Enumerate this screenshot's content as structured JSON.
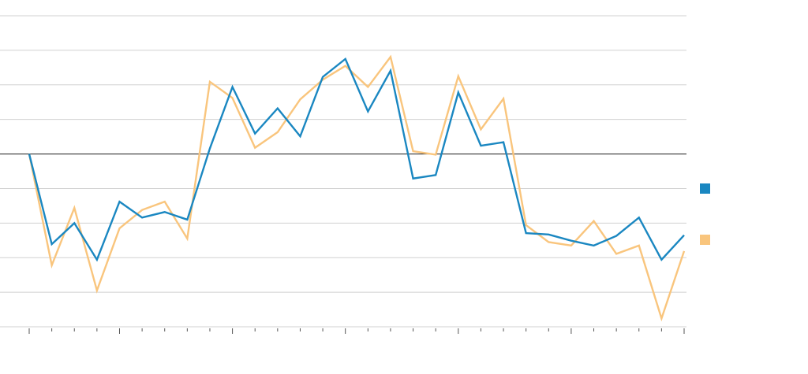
{
  "chart_data": {
    "type": "line",
    "x": [
      0,
      1,
      2,
      3,
      4,
      5,
      6,
      7,
      8,
      9,
      10,
      11,
      12,
      13,
      14,
      15,
      16,
      17,
      18,
      19,
      20,
      21,
      22,
      23,
      24,
      25,
      26,
      27,
      28,
      29
    ],
    "xlim": [
      0,
      29
    ],
    "xticks": [
      0,
      1,
      2,
      3,
      4,
      5,
      6,
      7,
      8,
      9,
      10,
      11,
      12,
      13,
      14,
      15,
      16,
      17,
      18,
      19,
      20,
      21,
      22,
      23,
      24,
      25,
      26,
      27,
      28,
      29
    ],
    "major_xticks": [
      0,
      4,
      9,
      14,
      19,
      24,
      29
    ],
    "ylim": [
      -50,
      40
    ],
    "yticks": [
      -50,
      -40,
      -30,
      -20,
      -10,
      0,
      10,
      20,
      30,
      40
    ],
    "grid": true,
    "baseline": 0,
    "series": [
      {
        "color": "#1a87c1",
        "values": [
          0,
          -26.1,
          -20.0,
          -30.6,
          -13.8,
          -18.4,
          -16.8,
          -19.0,
          1.6,
          19.4,
          5.9,
          13.2,
          5.1,
          22.3,
          27.5,
          12.3,
          24.1,
          -7.1,
          -6.1,
          17.8,
          2.4,
          3.4,
          -22.9,
          -23.3,
          -25.1,
          -26.5,
          -23.7,
          -18.4,
          -30.6,
          -23.5
        ]
      },
      {
        "color": "#f9c57d",
        "values": [
          0,
          -32.2,
          -15.6,
          -39.5,
          -21.5,
          -16.2,
          -13.8,
          -24.5,
          20.9,
          16.2,
          1.8,
          6.3,
          15.8,
          21.5,
          25.5,
          19.4,
          28.1,
          0.8,
          -0.2,
          22.5,
          7.1,
          16.0,
          -20.6,
          -25.5,
          -26.5,
          -19.4,
          -28.9,
          -26.5,
          -47.6,
          -28.1
        ]
      }
    ]
  }
}
